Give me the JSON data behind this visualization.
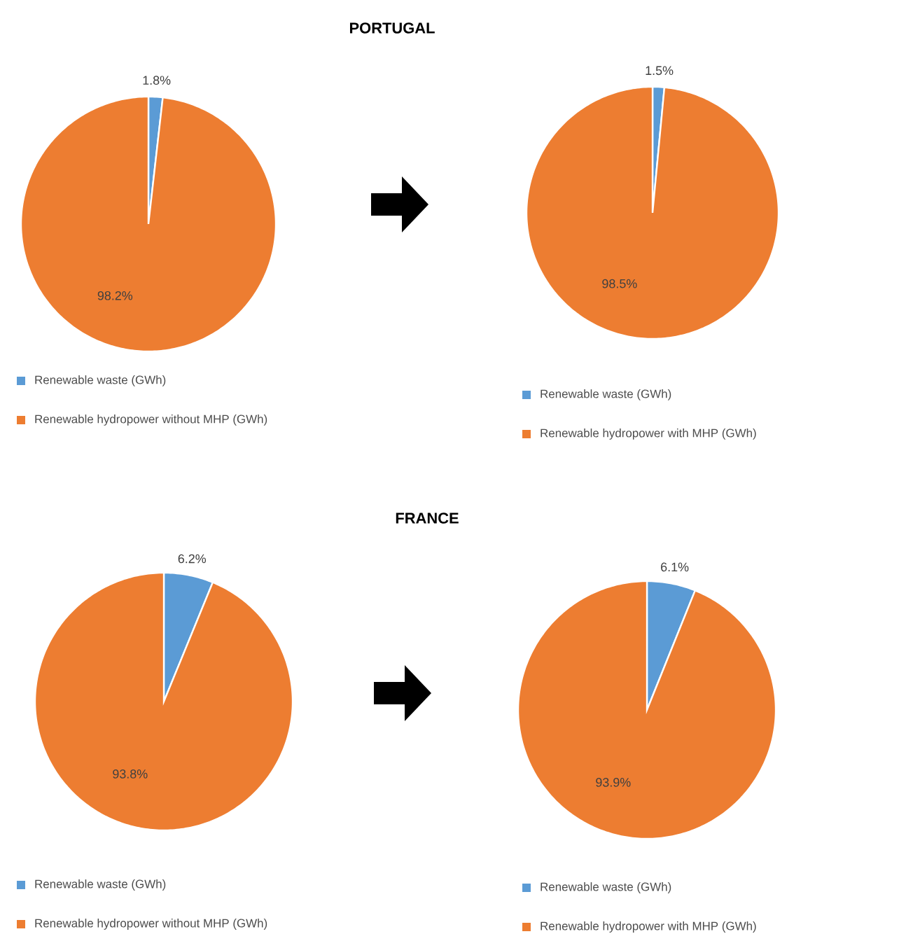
{
  "chart_data": [
    {
      "type": "pie",
      "title": "PORTUGAL",
      "categories": [
        "Renewable waste (GWh)",
        "Renewable hydropower without MHP (GWh)"
      ],
      "values": [
        1.8,
        98.2
      ],
      "value_labels": [
        "1.8%",
        "98.2%"
      ],
      "colors": [
        "#5b9bd5",
        "#ed7d31"
      ],
      "legend": "bottom"
    },
    {
      "type": "pie",
      "categories": [
        "Renewable waste (GWh)",
        "Renewable hydropower with MHP (GWh)"
      ],
      "values": [
        1.5,
        98.5
      ],
      "value_labels": [
        "1.5%",
        "98.5%"
      ],
      "colors": [
        "#5b9bd5",
        "#ed7d31"
      ],
      "legend": "bottom"
    },
    {
      "type": "pie",
      "title": "FRANCE",
      "categories": [
        "Renewable waste (GWh)",
        "Renewable hydropower without MHP (GWh)"
      ],
      "values": [
        6.2,
        93.8
      ],
      "value_labels": [
        "6.2%",
        "93.8%"
      ],
      "colors": [
        "#5b9bd5",
        "#ed7d31"
      ],
      "legend": "bottom"
    },
    {
      "type": "pie",
      "categories": [
        "Renewable waste (GWh)",
        "Renewable hydropower with MHP (GWh)"
      ],
      "values": [
        6.1,
        93.9
      ],
      "value_labels": [
        "6.1%",
        "93.9%"
      ],
      "colors": [
        "#5b9bd5",
        "#ed7d31"
      ],
      "legend": "bottom"
    }
  ]
}
